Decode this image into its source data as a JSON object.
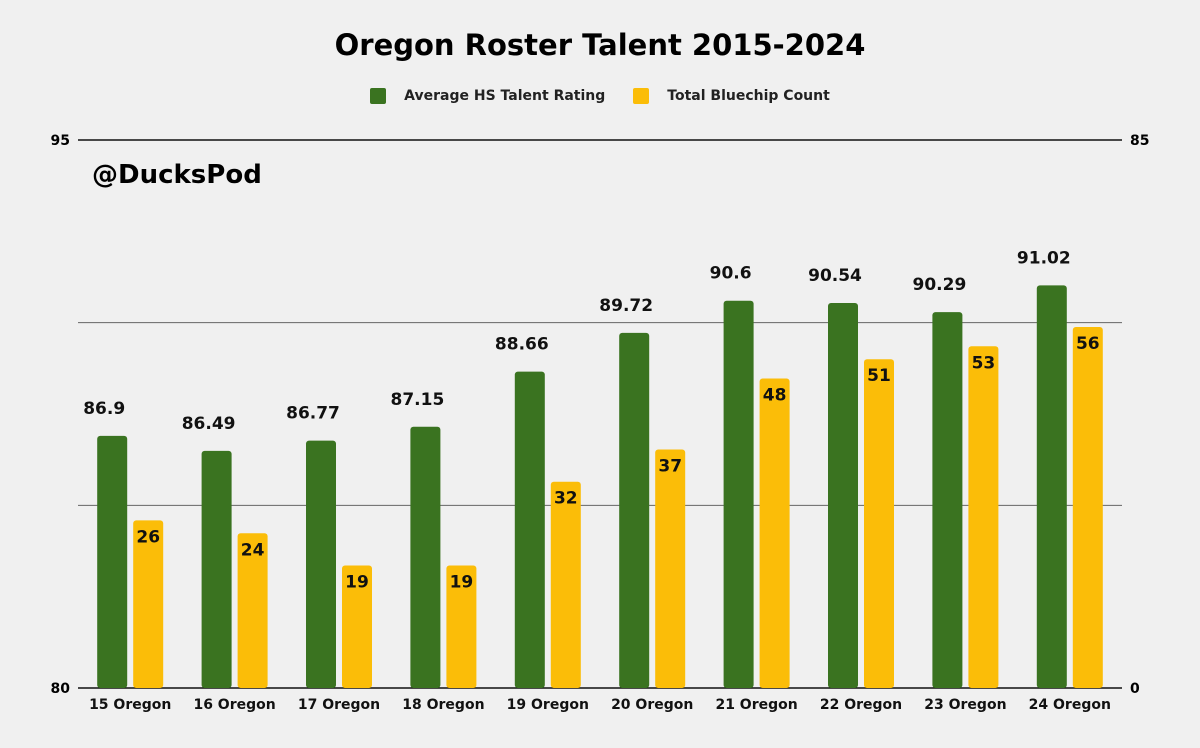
{
  "chart_data": {
    "type": "bar",
    "title": "Oregon Roster Talent 2015-2024",
    "watermark": "@DucksPod",
    "categories": [
      "15 Oregon",
      "16 Oregon",
      "17 Oregon",
      "18 Oregon",
      "19 Oregon",
      "20 Oregon",
      "21 Oregon",
      "22 Oregon",
      "23 Oregon",
      "24 Oregon"
    ],
    "series": [
      {
        "name": "Average HS Talent Rating",
        "axis": "left",
        "color": "#3a7320",
        "values": [
          86.9,
          86.49,
          86.77,
          87.15,
          88.66,
          89.72,
          90.6,
          90.54,
          90.29,
          91.02
        ],
        "labels": [
          "86.9",
          "86.49",
          "86.77",
          "87.15",
          "88.66",
          "89.72",
          "90.6",
          "90.54",
          "90.29",
          "91.02"
        ]
      },
      {
        "name": "Total Bluechip Count",
        "axis": "right",
        "color": "#fbbd08",
        "values": [
          26,
          24,
          19,
          19,
          32,
          37,
          48,
          51,
          53,
          56
        ],
        "labels": [
          "26",
          "24",
          "19",
          "19",
          "32",
          "37",
          "48",
          "51",
          "53",
          "56"
        ]
      }
    ],
    "y_left": {
      "min": 80,
      "max": 95,
      "min_label": "80",
      "max_label": "95"
    },
    "y_right": {
      "min": 0,
      "max": 85,
      "min_label": "0",
      "max_label": "85"
    },
    "legend": "top-center",
    "grid": true
  }
}
